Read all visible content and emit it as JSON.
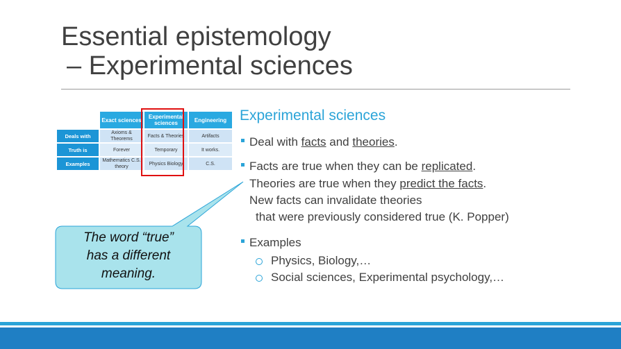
{
  "title": {
    "line1": "Essential epistemology",
    "line2": "– Experimental sciences"
  },
  "table": {
    "headers": [
      "Exact sciences",
      "Experimental sciences",
      "Engineering"
    ],
    "rows": [
      {
        "label": "Deals with",
        "cells": [
          "Axioms & Theorems",
          "Facts & Theories",
          "Artifacts"
        ]
      },
      {
        "label": "Truth is",
        "cells": [
          "Forever",
          "Temporary",
          "It works."
        ]
      },
      {
        "label": "Examples",
        "cells": [
          "Mathematics C.S. theory",
          "Physics Biology",
          "C.S."
        ]
      }
    ]
  },
  "right": {
    "heading": "Experimental sciences",
    "b1": {
      "pre": "Deal with ",
      "u1": "facts",
      "mid": " and ",
      "u2": "theories",
      "post": "."
    },
    "b2": {
      "pre": "Facts are true when they can be ",
      "u1": "replicated",
      "post": "."
    },
    "l2": {
      "pre": "Theories are true when they ",
      "u1": "predict the facts",
      "post": "."
    },
    "l3": "New facts can invalidate theories",
    "l4": "that were previously considered true (K. Popper)",
    "b3": "Examples",
    "s1": "Physics, Biology,…",
    "s2": "Social sciences, Experimental psychology,…"
  },
  "callout": {
    "line1": "The word “true”",
    "line2": "has a different",
    "line3": "meaning."
  },
  "colors": {
    "accent": "#2ba4d8",
    "highlight": "#e01010",
    "callout_fill": "#a9e3ec"
  }
}
